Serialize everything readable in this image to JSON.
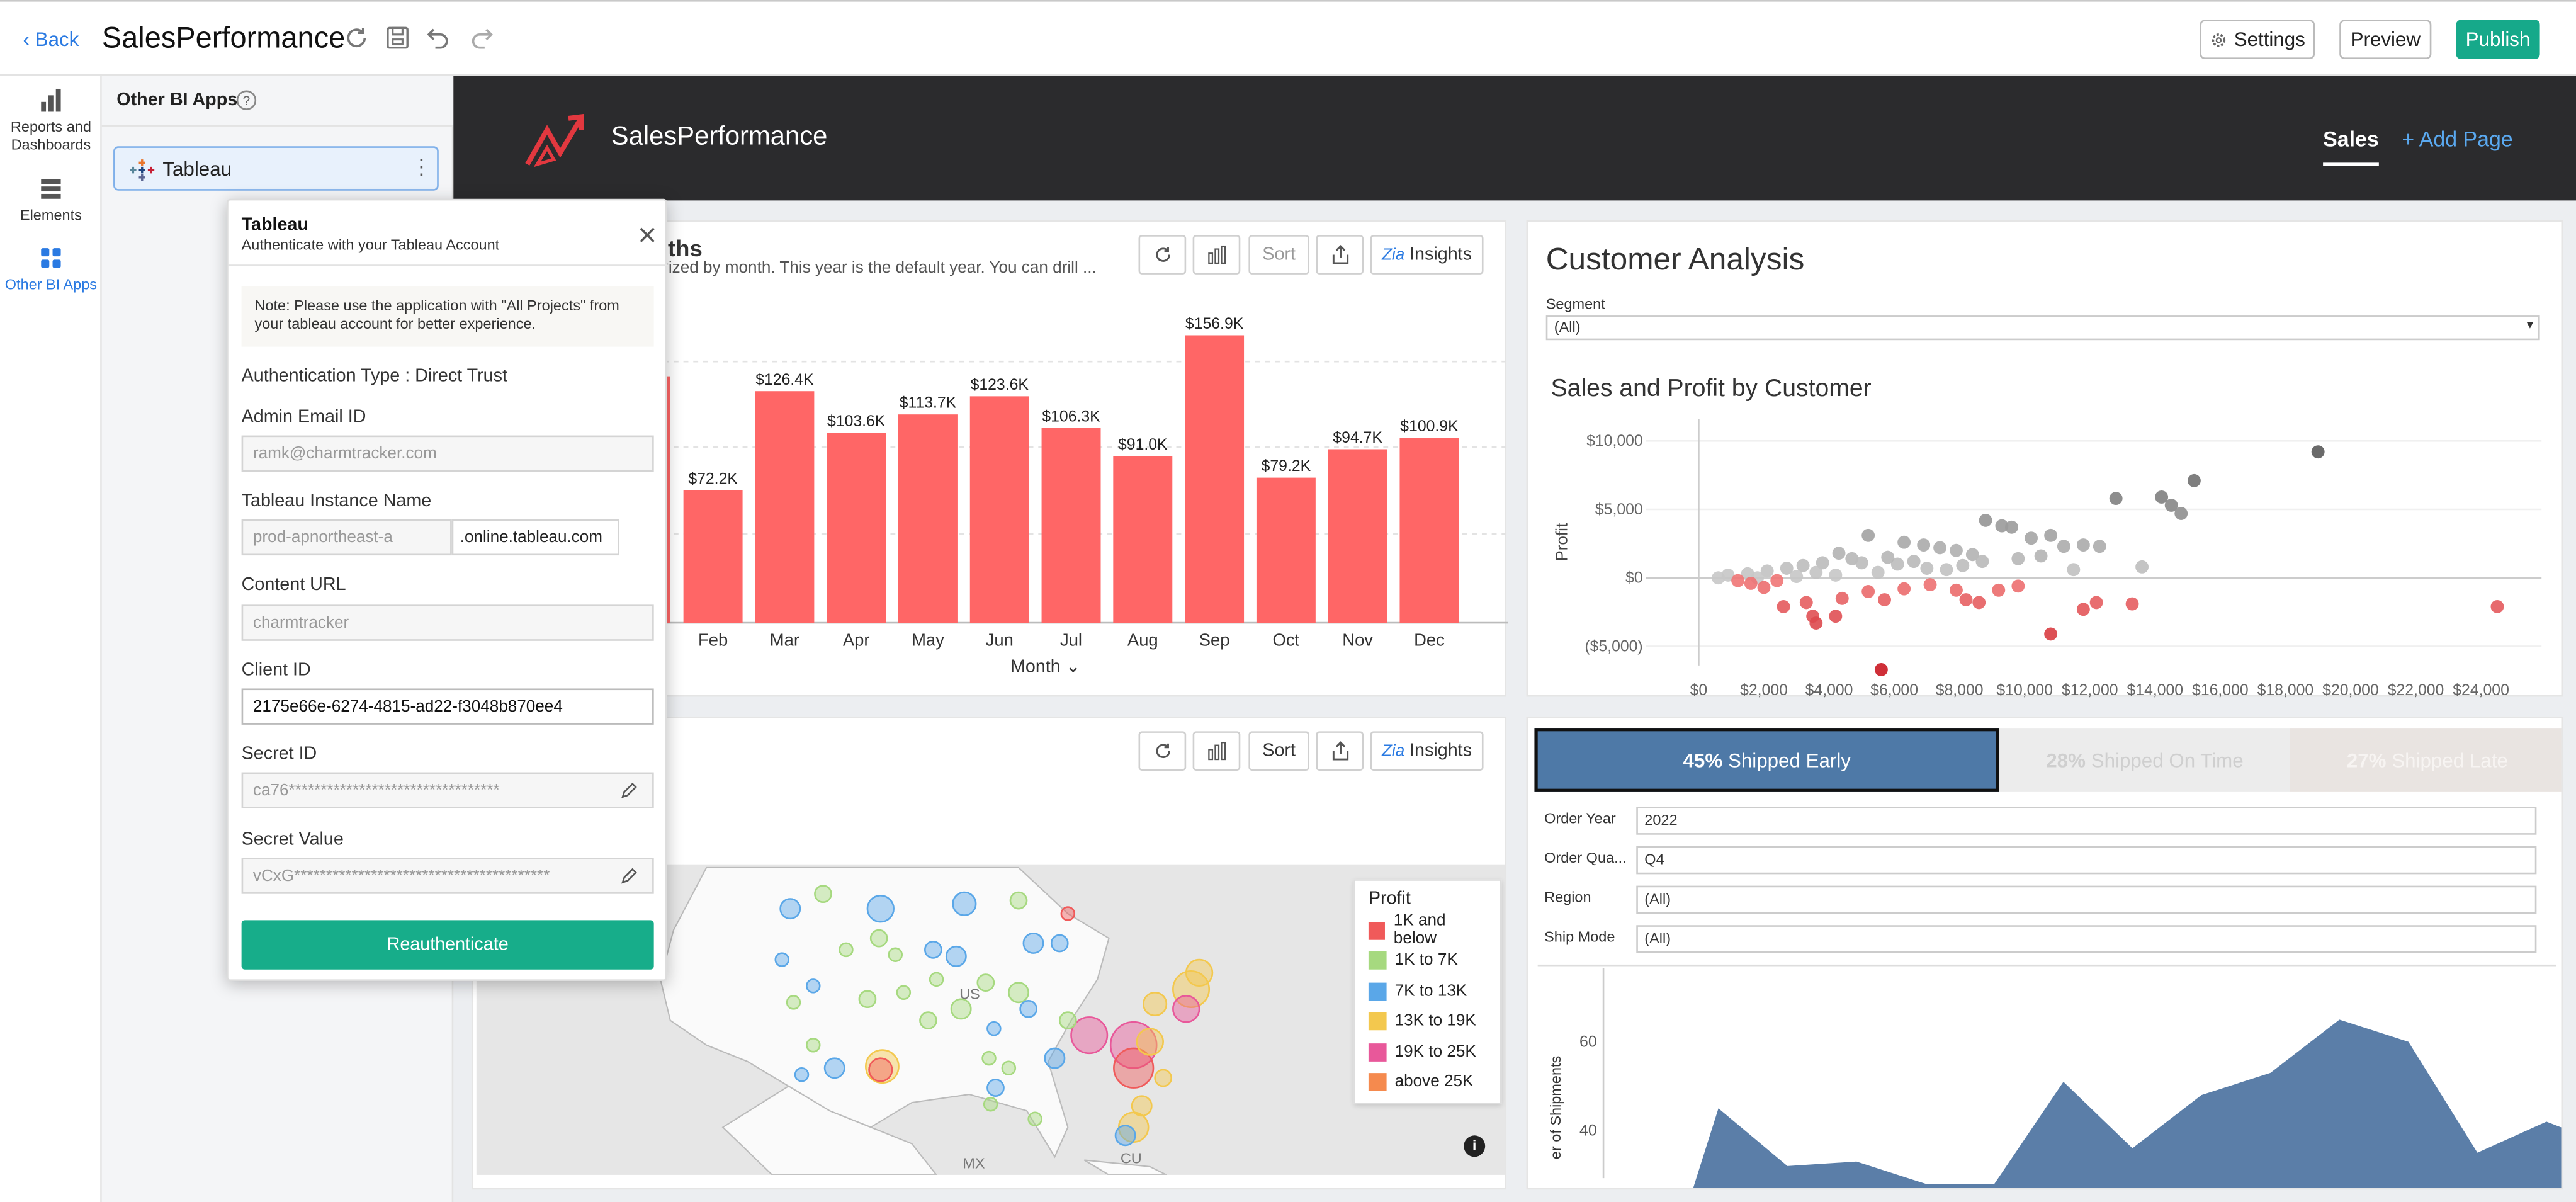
{
  "topbar": {
    "back_label": "Back",
    "title": "SalesPerformance",
    "settings_label": "Settings",
    "preview_label": "Preview",
    "publish_label": "Publish"
  },
  "leftnav": {
    "items": [
      {
        "label": "Reports and Dashboards",
        "icon": "bar-chart-icon"
      },
      {
        "label": "Elements",
        "icon": "elements-icon"
      },
      {
        "label": "Other BI Apps",
        "icon": "grid-icon"
      }
    ]
  },
  "panel": {
    "title": "Other BI Apps",
    "tableau_label": "Tableau"
  },
  "popup": {
    "title": "Tableau",
    "subtitle": "Authenticate with your Tableau Account",
    "note": "Note: Please use the application with \"All Projects\" from your tableau account for better experience.",
    "auth_type": "Authentication Type : Direct Trust",
    "admin_email_label": "Admin Email ID",
    "admin_email_placeholder": "ramk@charmtracker.com",
    "instance_label": "Tableau Instance Name",
    "instance_placeholder": "prod-apnortheast-a",
    "instance_suffix": ".online.tableau.com",
    "content_url_label": "Content URL",
    "content_url_placeholder": "charmtracker",
    "client_id_label": "Client ID",
    "client_id_value": "2175e66e-6274-4815-ad22-f3048b870ee4",
    "secret_id_label": "Secret ID",
    "secret_id_value": "ca76*********************************",
    "secret_value_label": "Secret Value",
    "secret_value_value": "vCxG****************************************",
    "reauth_label": "Reauthenticate"
  },
  "dashboard": {
    "name": "SalesPerformance",
    "tab_sales": "Sales",
    "add_page": "+ Add Page"
  },
  "toolbar": {
    "sort_label": "Sort",
    "insights_label": "Insights"
  },
  "bar_card": {
    "title_fragment": "nths",
    "desc_fragment": "orized by month. This year is the default year. You can drill ...",
    "xaxis_label": "Month"
  },
  "customer_card": {
    "title": "Customer Analysis",
    "segment_label": "Segment",
    "segment_value": "(All)",
    "chart_title": "Sales and Profit by Customer",
    "y_label": "Profit",
    "y_ticks": [
      "$10,000",
      "$5,000",
      "$0",
      "($5,000)"
    ],
    "x_ticks": [
      "$0",
      "$2,000",
      "$4,000",
      "$6,000",
      "$8,000",
      "$10,000",
      "$12,000",
      "$14,000",
      "$16,000",
      "$18,000",
      "$20,000",
      "$22,000",
      "$24,000"
    ]
  },
  "map_card": {
    "legend_title": "Profit",
    "legend_items": [
      {
        "label": "1K and below",
        "color": "#f05a5a"
      },
      {
        "label": "1K to 7K",
        "color": "#a6d97f"
      },
      {
        "label": "7K to 13K",
        "color": "#5aa7e8"
      },
      {
        "label": "13K to 19K",
        "color": "#f3c84e"
      },
      {
        "label": "19K to 25K",
        "color": "#e8589a"
      },
      {
        "label": "above 25K",
        "color": "#f58a4e"
      }
    ],
    "labels": [
      "US",
      "MX",
      "CU"
    ]
  },
  "shipping_card": {
    "early": {
      "pct": "45%",
      "label": "Shipped Early"
    },
    "ontime": {
      "pct": "28%",
      "label": "Shipped On Time"
    },
    "late": {
      "pct": "27%",
      "label": "Shipped Late"
    },
    "filters": [
      {
        "label": "Order Year",
        "value": "2022"
      },
      {
        "label": "Order Qua...",
        "value": "Q4"
      },
      {
        "label": "Region",
        "value": "(All)"
      },
      {
        "label": "Ship Mode",
        "value": "(All)"
      }
    ],
    "y_label": "er of Shipments",
    "y_ticks": [
      "60",
      "40"
    ]
  },
  "chart_data": [
    {
      "type": "bar",
      "categories": [
        "Feb",
        "Mar",
        "Apr",
        "May",
        "Jun",
        "Jul",
        "Aug",
        "Sep",
        "Oct",
        "Nov",
        "Dec"
      ],
      "values": [
        72.2,
        126.4,
        103.6,
        113.7,
        123.6,
        106.3,
        91.0,
        156.9,
        79.2,
        94.7,
        100.9
      ],
      "value_labels": [
        "$72.2K",
        "$126.4K",
        "$103.6K",
        "$113.7K",
        "$123.6K",
        "$106.3K",
        "$91.0K",
        "$156.9K",
        "$79.2K",
        "$94.7K",
        "$100.9K"
      ],
      "xlabel": "Month",
      "color": "#ff6666"
    },
    {
      "type": "scatter",
      "title": "Sales and Profit by Customer",
      "xlabel": "",
      "ylabel": "Profit",
      "xlim": [
        0,
        25000
      ],
      "ylim": [
        -7000,
        11000
      ],
      "points": [
        [
          19000,
          9200
        ],
        [
          12800,
          5800
        ],
        [
          14200,
          5900
        ],
        [
          14500,
          5300
        ],
        [
          14800,
          4700
        ],
        [
          15200,
          7100
        ],
        [
          8800,
          4200
        ],
        [
          9300,
          3800
        ],
        [
          9600,
          3700
        ],
        [
          10200,
          2900
        ],
        [
          10800,
          3100
        ],
        [
          11200,
          2300
        ],
        [
          11800,
          2400
        ],
        [
          12300,
          2300
        ],
        [
          13600,
          800
        ],
        [
          5200,
          3100
        ],
        [
          6300,
          2600
        ],
        [
          6900,
          2400
        ],
        [
          7400,
          2200
        ],
        [
          7900,
          2000
        ],
        [
          8400,
          1700
        ],
        [
          4300,
          1800
        ],
        [
          4700,
          1400
        ],
        [
          3800,
          1100
        ],
        [
          3200,
          900
        ],
        [
          2700,
          700
        ],
        [
          2100,
          500
        ],
        [
          1500,
          300
        ],
        [
          900,
          200
        ],
        [
          600,
          0
        ],
        [
          1800,
          0
        ],
        [
          2400,
          -200
        ],
        [
          3000,
          100
        ],
        [
          3600,
          400
        ],
        [
          4200,
          200
        ],
        [
          5500,
          400
        ],
        [
          6100,
          1000
        ],
        [
          7000,
          700
        ],
        [
          7600,
          600
        ],
        [
          8100,
          900
        ],
        [
          8700,
          1200
        ],
        [
          9800,
          1400
        ],
        [
          10500,
          1600
        ],
        [
          11500,
          600
        ],
        [
          5000,
          1100
        ],
        [
          5800,
          1500
        ],
        [
          6600,
          1200
        ],
        [
          2600,
          -2100
        ],
        [
          3300,
          -1800
        ],
        [
          3500,
          -2800
        ],
        [
          3600,
          -3300
        ],
        [
          4200,
          -2800
        ],
        [
          4400,
          -1500
        ],
        [
          5200,
          -1000
        ],
        [
          5700,
          -1600
        ],
        [
          6300,
          -800
        ],
        [
          7100,
          -500
        ],
        [
          7900,
          -900
        ],
        [
          8200,
          -1600
        ],
        [
          8600,
          -1800
        ],
        [
          9200,
          -900
        ],
        [
          9800,
          -600
        ],
        [
          10800,
          -4100
        ],
        [
          11800,
          -2300
        ],
        [
          12200,
          -1800
        ],
        [
          13300,
          -1900
        ],
        [
          5600,
          -6700
        ],
        [
          24500,
          -2100
        ],
        [
          1200,
          -200
        ],
        [
          1600,
          -400
        ],
        [
          2000,
          -700
        ]
      ]
    },
    {
      "type": "area",
      "ylabel": "Number of Shipments",
      "y_ticks": [
        60,
        40
      ],
      "ylim": [
        30,
        70
      ],
      "values": [
        null,
        45,
        32,
        33,
        28,
        28,
        51,
        36,
        48,
        53,
        65,
        60,
        35,
        42,
        36
      ]
    }
  ]
}
